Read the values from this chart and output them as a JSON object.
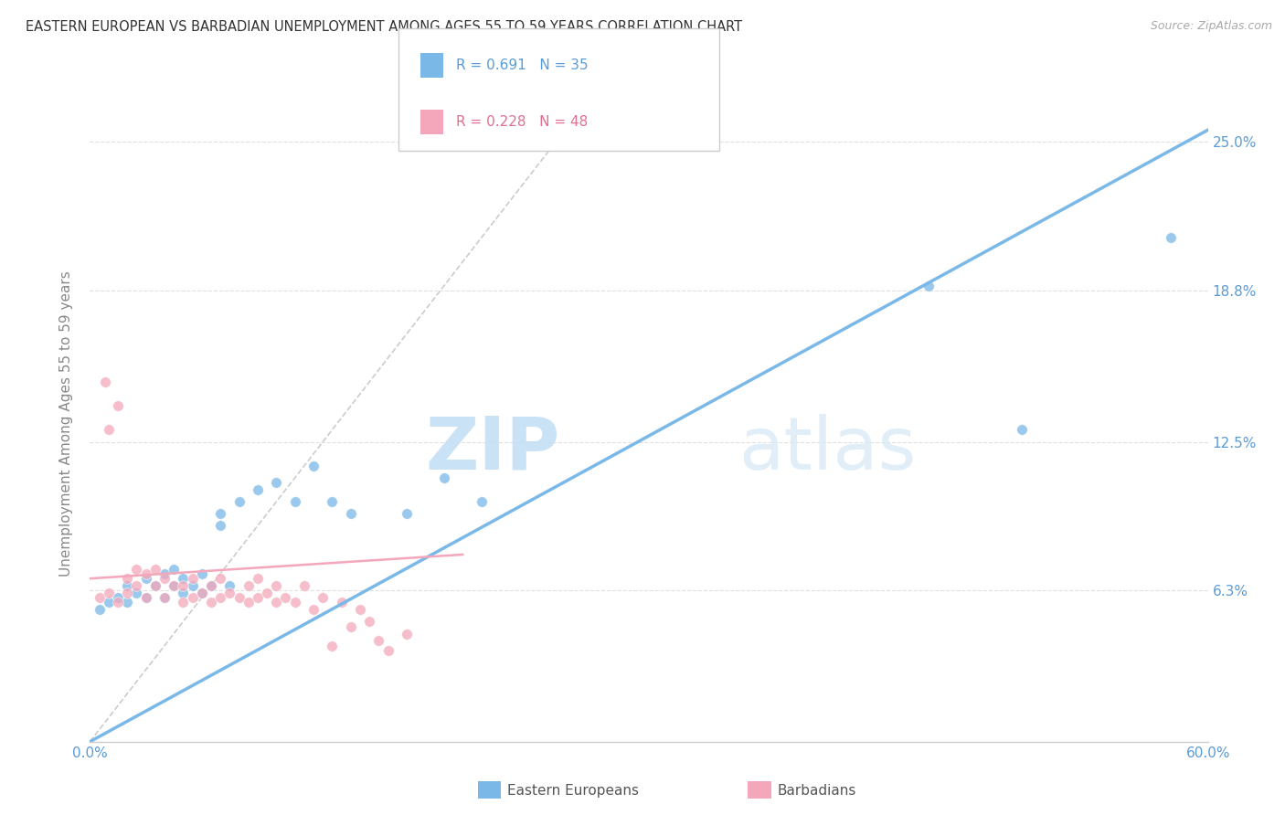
{
  "title": "EASTERN EUROPEAN VS BARBADIAN UNEMPLOYMENT AMONG AGES 55 TO 59 YEARS CORRELATION CHART",
  "source": "Source: ZipAtlas.com",
  "ylabel": "Unemployment Among Ages 55 to 59 years",
  "xlim": [
    0,
    0.6
  ],
  "ylim": [
    0,
    0.265
  ],
  "ytick_right_labels": [
    "6.3%",
    "12.5%",
    "18.8%",
    "25.0%"
  ],
  "ytick_right_values": [
    0.063,
    0.125,
    0.188,
    0.25
  ],
  "blue_color": "#7ab8e8",
  "pink_color": "#f4a7ba",
  "legend_blue_R": "R = 0.691",
  "legend_blue_N": "N = 35",
  "legend_pink_R": "R = 0.228",
  "legend_pink_N": "N = 48",
  "blue_line_x0": 0.0,
  "blue_line_y0": 0.0,
  "blue_line_x1": 0.6,
  "blue_line_y1": 0.255,
  "pink_line_x0": 0.0,
  "pink_line_y0": 0.068,
  "pink_line_x1": 0.2,
  "pink_line_y1": 0.078,
  "diag_line_x0": 0.0,
  "diag_line_y0": 0.0,
  "diag_line_x1": 0.265,
  "diag_line_y1": 0.265,
  "blue_scatter_x": [
    0.005,
    0.01,
    0.015,
    0.02,
    0.02,
    0.025,
    0.03,
    0.03,
    0.035,
    0.04,
    0.04,
    0.045,
    0.045,
    0.05,
    0.05,
    0.055,
    0.06,
    0.06,
    0.065,
    0.07,
    0.07,
    0.075,
    0.08,
    0.09,
    0.1,
    0.11,
    0.12,
    0.13,
    0.14,
    0.17,
    0.19,
    0.21,
    0.45,
    0.5,
    0.58
  ],
  "blue_scatter_y": [
    0.055,
    0.058,
    0.06,
    0.058,
    0.065,
    0.062,
    0.06,
    0.068,
    0.065,
    0.06,
    0.07,
    0.065,
    0.072,
    0.062,
    0.068,
    0.065,
    0.062,
    0.07,
    0.065,
    0.09,
    0.095,
    0.065,
    0.1,
    0.105,
    0.108,
    0.1,
    0.115,
    0.1,
    0.095,
    0.095,
    0.11,
    0.1,
    0.19,
    0.13,
    0.21
  ],
  "pink_scatter_x": [
    0.005,
    0.008,
    0.01,
    0.01,
    0.015,
    0.015,
    0.02,
    0.02,
    0.025,
    0.025,
    0.03,
    0.03,
    0.035,
    0.035,
    0.04,
    0.04,
    0.045,
    0.05,
    0.05,
    0.055,
    0.055,
    0.06,
    0.065,
    0.065,
    0.07,
    0.07,
    0.075,
    0.08,
    0.085,
    0.085,
    0.09,
    0.09,
    0.095,
    0.1,
    0.1,
    0.105,
    0.11,
    0.115,
    0.12,
    0.125,
    0.13,
    0.135,
    0.14,
    0.145,
    0.15,
    0.155,
    0.16,
    0.17
  ],
  "pink_scatter_y": [
    0.06,
    0.15,
    0.062,
    0.13,
    0.058,
    0.14,
    0.062,
    0.068,
    0.065,
    0.072,
    0.06,
    0.07,
    0.065,
    0.072,
    0.06,
    0.068,
    0.065,
    0.058,
    0.065,
    0.06,
    0.068,
    0.062,
    0.058,
    0.065,
    0.06,
    0.068,
    0.062,
    0.06,
    0.058,
    0.065,
    0.06,
    0.068,
    0.062,
    0.058,
    0.065,
    0.06,
    0.058,
    0.065,
    0.055,
    0.06,
    0.04,
    0.058,
    0.048,
    0.055,
    0.05,
    0.042,
    0.038,
    0.045
  ],
  "watermark_zip": "ZIP",
  "watermark_atlas": "atlas",
  "background_color": "#ffffff",
  "grid_color": "#e0e0e0"
}
